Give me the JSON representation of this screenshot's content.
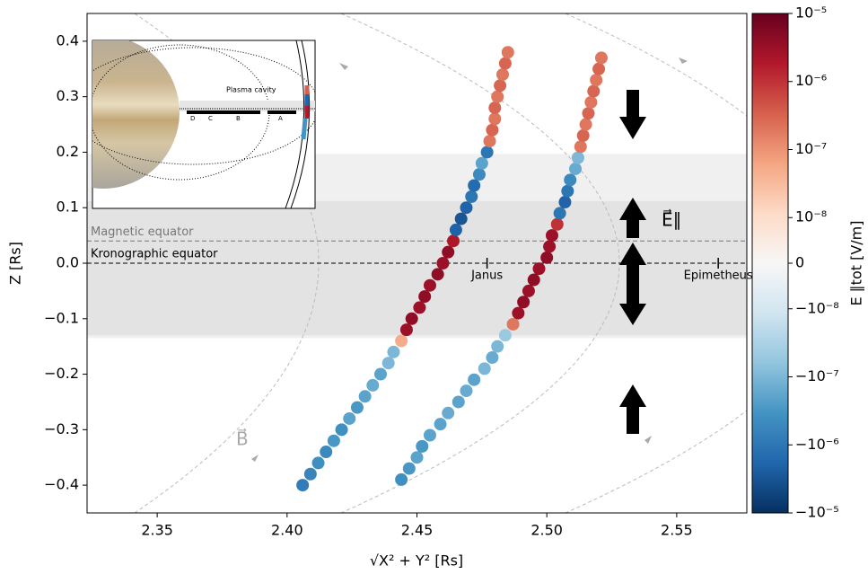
{
  "chart_data": {
    "type": "scatter",
    "xlabel": "√X² + Y²  [Rs]",
    "ylabel": "Z [Rs]",
    "xlim": [
      2.323,
      2.577
    ],
    "ylim": [
      -0.45,
      0.45
    ],
    "xticks": [
      2.35,
      {
        "value": 2.4,
        "label": "2.40"
      },
      2.45,
      {
        "value": 2.5,
        "label": "2.50"
      },
      2.55
    ],
    "yticks": [
      {
        "value": -0.4,
        "label": "−0.4"
      },
      {
        "value": -0.3,
        "label": "−0.3"
      },
      {
        "value": -0.2,
        "label": "−0.2"
      },
      {
        "value": -0.1,
        "label": "−0.1"
      },
      {
        "value": 0,
        "label": "0.0"
      },
      0.1,
      0.2,
      0.3,
      0.4
    ],
    "series": [
      {
        "x": [
          2.406,
          2.409,
          2.412,
          2.415,
          2.418,
          2.421,
          2.424,
          2.427,
          2.43,
          2.433,
          2.436,
          2.439,
          2.441,
          2.444,
          2.446,
          2.448,
          2.451,
          2.453,
          2.455,
          2.458,
          2.46,
          2.462,
          2.464,
          2.465,
          2.467,
          2.469,
          2.471,
          2.472,
          2.474,
          2.475,
          2.477,
          2.478,
          2.479,
          2.48,
          2.48,
          2.481,
          2.482,
          2.483,
          2.484,
          2.485
        ],
        "values": [
          -0.4,
          -0.38,
          -0.36,
          -0.34,
          -0.32,
          -0.3,
          -0.28,
          -0.26,
          -0.24,
          -0.22,
          -0.2,
          -0.18,
          -0.16,
          -0.14,
          -0.12,
          -0.1,
          -0.08,
          -0.06,
          -0.04,
          -0.02,
          0.0,
          0.02,
          0.04,
          0.06,
          0.08,
          0.1,
          0.12,
          0.14,
          0.16,
          0.18,
          0.2,
          0.22,
          0.24,
          0.26,
          0.28,
          0.3,
          0.32,
          0.34,
          0.36,
          0.38
        ],
        "color_values": [
          -8e-07,
          -6e-07,
          -4e-07,
          -5e-07,
          -3e-07,
          -4e-07,
          -2e-07,
          -3e-07,
          -2e-07,
          -1.5e-07,
          -2e-07,
          -1e-07,
          -1e-07,
          5e-08,
          3e-06,
          4e-06,
          3e-06,
          4e-06,
          3e-06,
          4e-06,
          3e-06,
          4e-06,
          2e-06,
          -2e-06,
          -3e-06,
          -2e-06,
          -1e-06,
          -1.5e-06,
          -5e-07,
          -2e-07,
          -1e-06,
          2e-07,
          3e-07,
          2e-07,
          3e-07,
          2e-07,
          3e-07,
          2e-07,
          3e-07,
          2e-07
        ]
      },
      {
        "x": [
          2.444,
          2.447,
          2.45,
          2.452,
          2.455,
          2.459,
          2.462,
          2.466,
          2.469,
          2.472,
          2.476,
          2.479,
          2.481,
          2.484,
          2.487,
          2.489,
          2.491,
          2.493,
          2.495,
          2.497,
          2.5,
          2.501,
          2.502,
          2.504,
          2.505,
          2.507,
          2.508,
          2.509,
          2.511,
          2.512,
          2.513,
          2.514,
          2.515,
          2.516,
          2.517,
          2.518,
          2.519,
          2.52,
          2.521
        ],
        "values": [
          -0.39,
          -0.37,
          -0.35,
          -0.33,
          -0.31,
          -0.29,
          -0.27,
          -0.25,
          -0.23,
          -0.21,
          -0.19,
          -0.17,
          -0.15,
          -0.13,
          -0.11,
          -0.09,
          -0.07,
          -0.05,
          -0.03,
          -0.01,
          0.01,
          0.03,
          0.05,
          0.07,
          0.09,
          0.11,
          0.13,
          0.15,
          0.17,
          0.19,
          0.21,
          0.23,
          0.25,
          0.27,
          0.29,
          0.31,
          0.33,
          0.35,
          0.37
        ],
        "color_values": [
          -4e-07,
          -3e-07,
          -2e-07,
          -3e-07,
          -2e-07,
          -2e-07,
          -1.5e-07,
          -2e-07,
          -1.5e-07,
          -2e-07,
          -1e-07,
          -1.5e-07,
          -1e-07,
          -5e-08,
          2e-07,
          3e-06,
          4e-06,
          3e-06,
          4e-06,
          3e-06,
          4e-06,
          3e-06,
          3e-06,
          1e-06,
          -1e-06,
          -2e-06,
          -1e-06,
          -5e-07,
          -1.5e-07,
          -1e-07,
          2e-07,
          3e-07,
          2e-07,
          3e-07,
          2e-07,
          3e-07,
          2e-07,
          3e-07,
          2e-07
        ]
      }
    ],
    "colorbar": {
      "label": "E ∥tot [V/m]",
      "scale": "symlog",
      "linthresh": 1e-08,
      "lim": [
        -1e-05,
        1e-05
      ],
      "ticks": [
        {
          "value": 1e-05,
          "label": "10⁻⁵"
        },
        {
          "value": 1e-06,
          "label": "10⁻⁶"
        },
        {
          "value": 1e-07,
          "label": "10⁻⁷"
        },
        {
          "value": 1e-08,
          "label": "10⁻⁸"
        },
        0,
        {
          "value": -1e-08,
          "label": "−10⁻⁸"
        },
        {
          "value": -1e-07,
          "label": "−10⁻⁷"
        },
        {
          "value": -1e-06,
          "label": "−10⁻⁶"
        },
        {
          "value": -1e-05,
          "label": "−10⁻⁵"
        }
      ],
      "colormap": [
        "#053061",
        "#2166ac",
        "#4393c3",
        "#92c5de",
        "#d1e5f0",
        "#f7f7f7",
        "#fddbc7",
        "#f4a582",
        "#d6604d",
        "#b2182b",
        "#67001f"
      ]
    },
    "bands": [
      {
        "range": [
          -0.135,
          0.197
        ],
        "color": "#f0f0f0"
      },
      {
        "range": [
          -0.13,
          0.112
        ],
        "color": "#e3e3e3"
      }
    ],
    "hlines": [
      {
        "value": 0.04,
        "label": "Magnetic equator",
        "color": "#777777"
      },
      {
        "value": 0,
        "label": "Kronographic equator",
        "color": "#000000"
      }
    ],
    "moons": [
      {
        "x": 2.477,
        "label": "Janus"
      },
      {
        "x": 2.566,
        "label": "Epimetheus"
      }
    ],
    "annotations": {
      "field": "E⃗∥",
      "b_field": "B⃗"
    }
  },
  "inset": {
    "title": "Plasma cavity",
    "rings": [
      "D",
      "C",
      "B",
      "A"
    ]
  }
}
